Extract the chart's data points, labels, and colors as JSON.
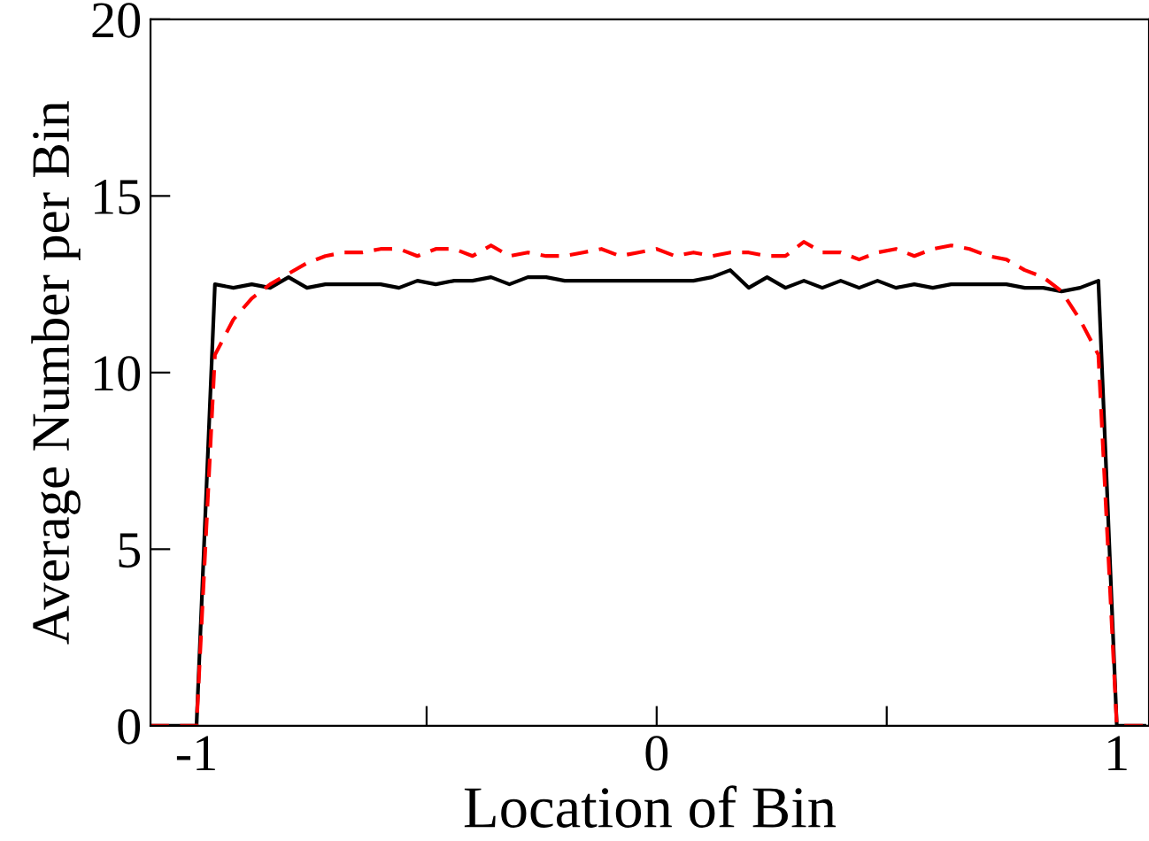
{
  "chart_data": {
    "type": "line",
    "xlabel": "Location of Bin",
    "ylabel": "Average Number per Bin",
    "xlim": [
      -1.1,
      1.07
    ],
    "ylim": [
      0,
      20
    ],
    "xticks": [
      {
        "value": -1,
        "label": "-1"
      },
      {
        "value": -0.5,
        "label": null
      },
      0,
      {
        "value": 0.5,
        "label": null
      },
      1
    ],
    "yticks": [
      0,
      5,
      10,
      15,
      20
    ],
    "grid": false,
    "legend": false,
    "series": [
      {
        "color": "#000000",
        "line_style": "solid",
        "x": [
          -1.1,
          -1.0,
          -0.96,
          -0.92,
          -0.88,
          -0.84,
          -0.8,
          -0.76,
          -0.72,
          -0.68,
          -0.64,
          -0.6,
          -0.56,
          -0.52,
          -0.48,
          -0.44,
          -0.4,
          -0.36,
          -0.32,
          -0.28,
          -0.24,
          -0.2,
          -0.16,
          -0.12,
          -0.08,
          -0.04,
          0,
          0.04,
          0.08,
          0.12,
          0.16,
          0.2,
          0.24,
          0.28,
          0.32,
          0.36,
          0.4,
          0.44,
          0.48,
          0.52,
          0.56,
          0.6,
          0.64,
          0.68,
          0.72,
          0.76,
          0.8,
          0.84,
          0.88,
          0.92,
          0.96,
          1.0,
          1.06
        ],
        "values": [
          0,
          0,
          12.5,
          12.4,
          12.5,
          12.4,
          12.7,
          12.4,
          12.5,
          12.5,
          12.5,
          12.5,
          12.4,
          12.6,
          12.5,
          12.6,
          12.6,
          12.7,
          12.5,
          12.7,
          12.7,
          12.6,
          12.6,
          12.6,
          12.6,
          12.6,
          12.6,
          12.6,
          12.6,
          12.7,
          12.9,
          12.4,
          12.7,
          12.4,
          12.6,
          12.4,
          12.6,
          12.4,
          12.6,
          12.4,
          12.5,
          12.4,
          12.5,
          12.5,
          12.5,
          12.5,
          12.4,
          12.4,
          12.3,
          12.4,
          12.6,
          0,
          0
        ]
      },
      {
        "color": "#ff0000",
        "line_style": "dashed",
        "x": [
          -1.1,
          -1.0,
          -0.96,
          -0.92,
          -0.88,
          -0.84,
          -0.8,
          -0.76,
          -0.72,
          -0.68,
          -0.64,
          -0.6,
          -0.56,
          -0.52,
          -0.48,
          -0.44,
          -0.4,
          -0.36,
          -0.32,
          -0.28,
          -0.24,
          -0.2,
          -0.16,
          -0.12,
          -0.08,
          -0.04,
          0,
          0.04,
          0.08,
          0.12,
          0.16,
          0.2,
          0.24,
          0.28,
          0.32,
          0.36,
          0.4,
          0.44,
          0.48,
          0.52,
          0.56,
          0.6,
          0.64,
          0.68,
          0.72,
          0.76,
          0.8,
          0.84,
          0.88,
          0.92,
          0.96,
          1.0,
          1.06
        ],
        "values": [
          0,
          0,
          10.5,
          11.5,
          12.1,
          12.5,
          12.8,
          13.1,
          13.3,
          13.4,
          13.4,
          13.5,
          13.5,
          13.3,
          13.5,
          13.5,
          13.3,
          13.6,
          13.3,
          13.4,
          13.3,
          13.3,
          13.4,
          13.5,
          13.3,
          13.4,
          13.5,
          13.3,
          13.4,
          13.3,
          13.4,
          13.4,
          13.3,
          13.3,
          13.7,
          13.4,
          13.4,
          13.2,
          13.4,
          13.5,
          13.3,
          13.5,
          13.6,
          13.5,
          13.3,
          13.2,
          12.9,
          12.7,
          12.3,
          11.5,
          10.5,
          0,
          0
        ]
      }
    ]
  }
}
